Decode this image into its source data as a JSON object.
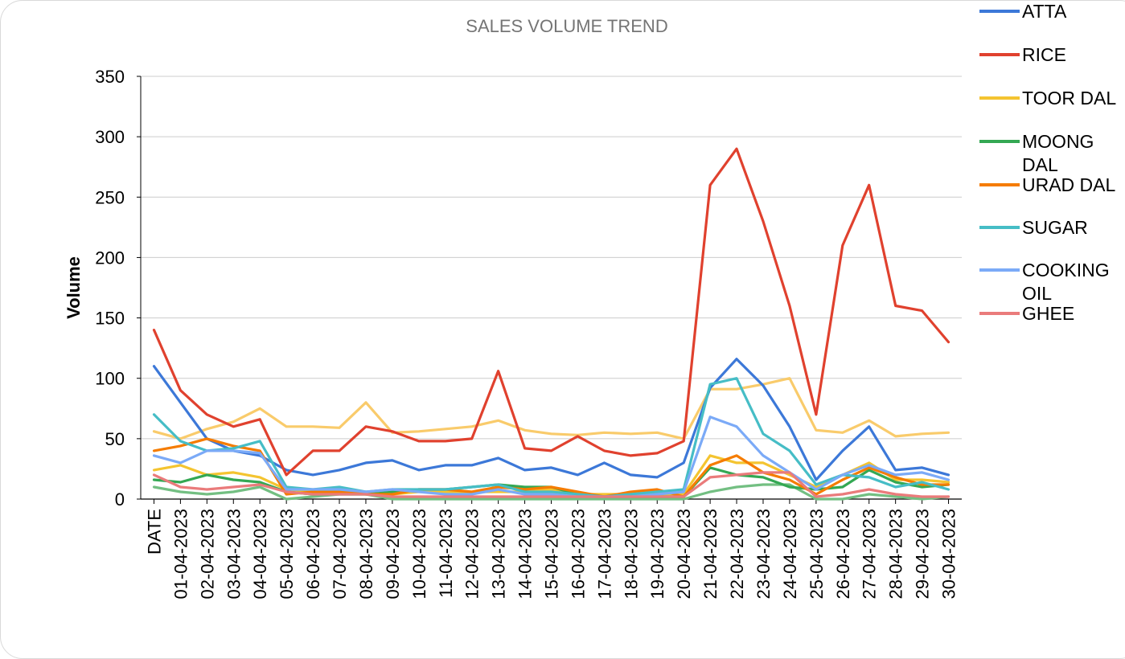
{
  "chart_data": {
    "type": "line",
    "title": "SALES VOLUME TREND",
    "xlabel": "",
    "ylabel": "Volume",
    "ylim": [
      0,
      350
    ],
    "yticks": [
      0,
      50,
      100,
      150,
      200,
      250,
      300,
      350
    ],
    "grid": true,
    "legend_position": "right",
    "categories": [
      "DATE",
      "01-04-2023",
      "02-04-2023",
      "03-04-2023",
      "04-04-2023",
      "05-04-2023",
      "06-04-2023",
      "07-04-2023",
      "08-04-2023",
      "09-04-2023",
      "10-04-2023",
      "11-04-2023",
      "12-04-2023",
      "13-04-2023",
      "14-04-2023",
      "15-04-2023",
      "16-04-2023",
      "17-04-2023",
      "18-04-2023",
      "19-04-2023",
      "20-04-2023",
      "21-04-2023",
      "22-04-2023",
      "23-04-2023",
      "24-04-2023",
      "25-04-2023",
      "26-04-2023",
      "27-04-2023",
      "28-04-2023",
      "29-04-2023",
      "30-04-2023"
    ],
    "series": [
      {
        "name": "ATTA",
        "color": "#3c78d8",
        "values": [
          110,
          80,
          50,
          40,
          36,
          24,
          20,
          24,
          30,
          32,
          24,
          28,
          28,
          34,
          24,
          26,
          20,
          30,
          20,
          18,
          30,
          92,
          116,
          94,
          60,
          16,
          40,
          60,
          24,
          26,
          20
        ]
      },
      {
        "name": "RICE",
        "color": "#e0412e",
        "values": [
          140,
          90,
          70,
          60,
          66,
          20,
          40,
          40,
          60,
          56,
          48,
          48,
          50,
          106,
          42,
          40,
          52,
          40,
          36,
          38,
          48,
          260,
          290,
          230,
          160,
          70,
          210,
          260,
          160,
          156,
          130
        ]
      },
      {
        "name": "TOOR DAL",
        "color": "#f4c430",
        "values": [
          24,
          28,
          20,
          22,
          18,
          8,
          6,
          6,
          6,
          4,
          6,
          6,
          6,
          6,
          6,
          8,
          4,
          4,
          4,
          4,
          4,
          36,
          30,
          30,
          20,
          10,
          20,
          30,
          16,
          16,
          14
        ]
      },
      {
        "name": "MOONG DAL",
        "color": "#34a853",
        "values": [
          16,
          14,
          20,
          16,
          14,
          6,
          4,
          4,
          4,
          6,
          8,
          8,
          10,
          12,
          10,
          10,
          4,
          2,
          2,
          2,
          2,
          26,
          20,
          18,
          10,
          8,
          10,
          24,
          14,
          10,
          12
        ]
      },
      {
        "name": "URAD DAL",
        "color": "#f57c00",
        "values": [
          40,
          44,
          50,
          44,
          40,
          4,
          6,
          6,
          4,
          4,
          8,
          8,
          6,
          10,
          8,
          10,
          6,
          2,
          6,
          8,
          2,
          28,
          36,
          22,
          16,
          4,
          16,
          26,
          18,
          12,
          12
        ]
      },
      {
        "name": "SUGAR",
        "color": "#46bdc6",
        "values": [
          70,
          48,
          40,
          42,
          48,
          10,
          8,
          10,
          6,
          8,
          8,
          8,
          10,
          12,
          6,
          6,
          4,
          2,
          4,
          6,
          8,
          95,
          100,
          54,
          40,
          12,
          20,
          18,
          10,
          14,
          8
        ]
      },
      {
        "name": "COOKING OIL",
        "color": "#7baaf7",
        "values": [
          36,
          30,
          40,
          40,
          38,
          8,
          8,
          8,
          6,
          8,
          6,
          4,
          4,
          8,
          4,
          4,
          2,
          2,
          2,
          4,
          6,
          68,
          60,
          36,
          22,
          8,
          20,
          28,
          20,
          22,
          16
        ]
      },
      {
        "name": "GHEE",
        "color": "#ea7b7b",
        "values": [
          20,
          10,
          8,
          10,
          12,
          6,
          4,
          4,
          4,
          2,
          2,
          2,
          2,
          2,
          2,
          2,
          2,
          2,
          2,
          2,
          2,
          18,
          20,
          22,
          22,
          2,
          4,
          8,
          4,
          2,
          2
        ]
      }
    ],
    "extra_series": [
      {
        "name": "",
        "color": "#73bf82",
        "values": [
          10,
          6,
          4,
          6,
          10,
          0,
          2,
          4,
          4,
          0,
          0,
          0,
          0,
          0,
          0,
          0,
          0,
          0,
          0,
          0,
          0,
          6,
          10,
          12,
          12,
          0,
          0,
          4,
          2,
          0,
          2
        ]
      },
      {
        "name": "",
        "color": "#f9cb6b",
        "values": [
          56,
          50,
          58,
          64,
          75,
          60,
          60,
          59,
          80,
          55,
          56,
          58,
          60,
          65,
          57,
          54,
          53,
          55,
          54,
          55,
          50,
          91,
          91,
          95,
          100,
          57,
          55,
          65,
          52,
          54,
          55
        ]
      }
    ]
  }
}
